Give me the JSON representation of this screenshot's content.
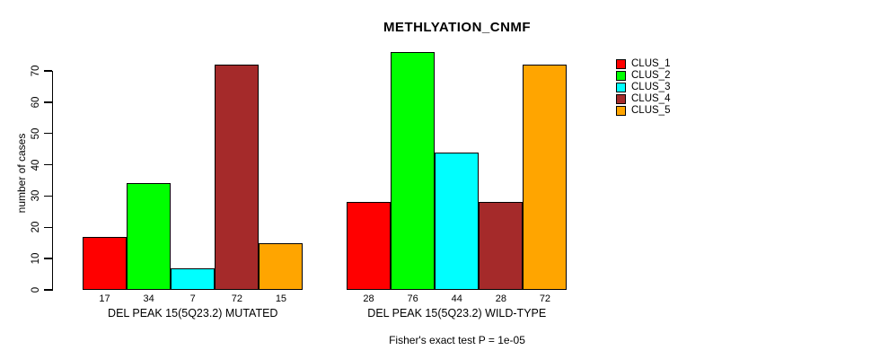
{
  "chart_data": {
    "type": "bar",
    "title": "METHLYATION_CNMF",
    "xlabel": "",
    "ylabel": "number of cases",
    "ylim": [
      0,
      76
    ],
    "yticks": [
      0,
      10,
      20,
      30,
      40,
      50,
      60,
      70
    ],
    "grid": false,
    "legend_position": "right-top",
    "bar_value_labels": true,
    "categories": [
      "DEL PEAK 15(5Q23.2) MUTATED",
      "DEL PEAK 15(5Q23.2) WILD-TYPE"
    ],
    "series": [
      {
        "name": "CLUS_1",
        "color": "#FF0000",
        "values": [
          17,
          28
        ]
      },
      {
        "name": "CLUS_2",
        "color": "#00FF00",
        "values": [
          34,
          76
        ]
      },
      {
        "name": "CLUS_3",
        "color": "#00FFFF",
        "values": [
          7,
          44
        ]
      },
      {
        "name": "CLUS_4",
        "color": "#A52A2A",
        "values": [
          72,
          28
        ]
      },
      {
        "name": "CLUS_5",
        "color": "#FFA500",
        "values": [
          15,
          72
        ]
      }
    ],
    "annotation": "Fisher's exact test P = 1e-05"
  }
}
